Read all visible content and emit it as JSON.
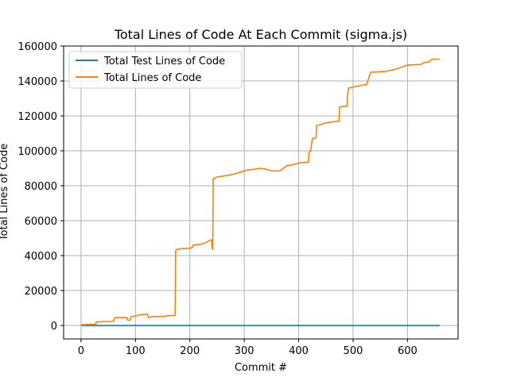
{
  "chart_data": {
    "type": "line",
    "title": "Total Lines of Code At Each Commit (sigma.js)",
    "xlabel": "Commit #",
    "ylabel": "Total Lines of Code",
    "xlim": [
      -32,
      693
    ],
    "ylim": [
      -7700,
      160000
    ],
    "xticks": [
      0,
      100,
      200,
      300,
      400,
      500,
      600
    ],
    "yticks": [
      0,
      20000,
      40000,
      60000,
      80000,
      100000,
      120000,
      140000,
      160000
    ],
    "grid": true,
    "legend_position": "top-left",
    "series": [
      {
        "name": "Total Test Lines of Code",
        "color": "#1f77b4",
        "points": [
          [
            0,
            0
          ],
          [
            659,
            0
          ]
        ]
      },
      {
        "name": "Total Lines of Code",
        "color": "#ff7f0e",
        "points": [
          [
            0,
            400
          ],
          [
            20,
            700
          ],
          [
            27,
            800
          ],
          [
            28,
            2000
          ],
          [
            45,
            2300
          ],
          [
            60,
            2300
          ],
          [
            62,
            4500
          ],
          [
            84,
            4600
          ],
          [
            86,
            3000
          ],
          [
            90,
            3000
          ],
          [
            92,
            5000
          ],
          [
            100,
            5500
          ],
          [
            110,
            6200
          ],
          [
            122,
            6500
          ],
          [
            124,
            4500
          ],
          [
            130,
            5000
          ],
          [
            150,
            5100
          ],
          [
            160,
            5600
          ],
          [
            173,
            5800
          ],
          [
            174,
            43000
          ],
          [
            176,
            43500
          ],
          [
            185,
            44000
          ],
          [
            200,
            44200
          ],
          [
            205,
            44800
          ],
          [
            206,
            46000
          ],
          [
            220,
            46500
          ],
          [
            225,
            47000
          ],
          [
            230,
            47500
          ],
          [
            235,
            48500
          ],
          [
            240,
            49000
          ],
          [
            241,
            44000
          ],
          [
            242,
            43500
          ],
          [
            243,
            84000
          ],
          [
            250,
            85000
          ],
          [
            260,
            85500
          ],
          [
            270,
            86000
          ],
          [
            285,
            87000
          ],
          [
            295,
            88000
          ],
          [
            305,
            89000
          ],
          [
            320,
            89500
          ],
          [
            330,
            90000
          ],
          [
            340,
            89500
          ],
          [
            350,
            88500
          ],
          [
            365,
            88500
          ],
          [
            370,
            89500
          ],
          [
            378,
            91500
          ],
          [
            390,
            92000
          ],
          [
            400,
            93000
          ],
          [
            412,
            93500
          ],
          [
            418,
            93500
          ],
          [
            419,
            99000
          ],
          [
            422,
            100000
          ],
          [
            425,
            107000
          ],
          [
            432,
            107500
          ],
          [
            433,
            114500
          ],
          [
            440,
            115000
          ],
          [
            450,
            116000
          ],
          [
            460,
            116500
          ],
          [
            474,
            117000
          ],
          [
            475,
            125000
          ],
          [
            480,
            125500
          ],
          [
            489,
            125500
          ],
          [
            490,
            133000
          ],
          [
            492,
            136000
          ],
          [
            500,
            136500
          ],
          [
            515,
            137500
          ],
          [
            525,
            138000
          ],
          [
            530,
            143000
          ],
          [
            532,
            145000
          ],
          [
            545,
            145200
          ],
          [
            560,
            145500
          ],
          [
            575,
            146500
          ],
          [
            582,
            147000
          ],
          [
            585,
            147500
          ],
          [
            595,
            148500
          ],
          [
            598,
            149000
          ],
          [
            625,
            149500
          ],
          [
            630,
            150500
          ],
          [
            640,
            151000
          ],
          [
            645,
            152500
          ],
          [
            659,
            152500
          ]
        ]
      }
    ]
  }
}
